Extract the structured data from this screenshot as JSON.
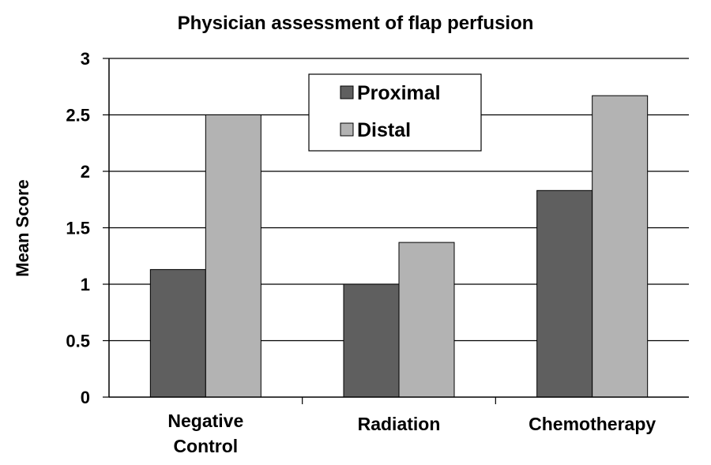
{
  "chart_data": {
    "type": "bar",
    "title": "Physician assessment of flap perfusion",
    "xlabel": "",
    "ylabel": "Mean Score",
    "categories": [
      [
        "Negative",
        "Control"
      ],
      [
        "Radiation"
      ],
      [
        "Chemotherapy"
      ]
    ],
    "series": [
      {
        "name": "Proximal",
        "values": [
          1.13,
          1.0,
          1.83
        ],
        "color": "#5f5f5f"
      },
      {
        "name": "Distal",
        "values": [
          2.5,
          1.37,
          2.67
        ],
        "color": "#b3b3b3"
      }
    ],
    "ylim": [
      0,
      3
    ],
    "yticks": [
      "0",
      "0.5",
      "1",
      "1.5",
      "2",
      "2.5",
      "3"
    ],
    "grid": true,
    "legend_position": "top-center"
  }
}
